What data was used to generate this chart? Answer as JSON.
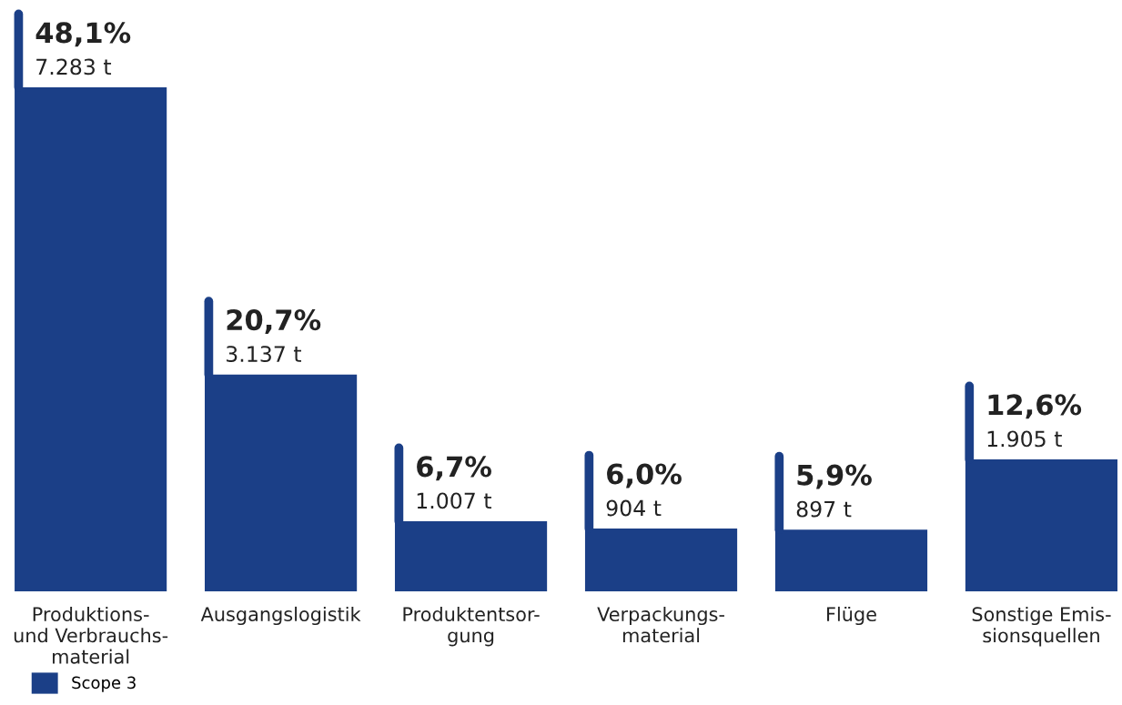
{
  "chart_data": {
    "type": "bar",
    "categories": [
      "Produktions-\nund Verbrauchs-\nmaterial",
      "Ausgangslogistik",
      "Produktentsor-\ngung",
      "Verpackungs-\nmaterial",
      "Flüge",
      "Sonstige Emis-\nsionsquellen"
    ],
    "series": [
      {
        "name": "Scope 3",
        "color": "#1b3f87",
        "values": [
          48.1,
          20.7,
          6.7,
          6.0,
          5.9,
          12.6
        ],
        "value_labels": [
          "48,1%\n7.283 t",
          "20,7%\n3.137 t",
          "6,7%\n1.007 t",
          "6,0%\n904 t",
          "5,9%\n897 t",
          "12,6%\n1.905 t"
        ]
      }
    ],
    "legend": "bottom left",
    "grid": false
  }
}
